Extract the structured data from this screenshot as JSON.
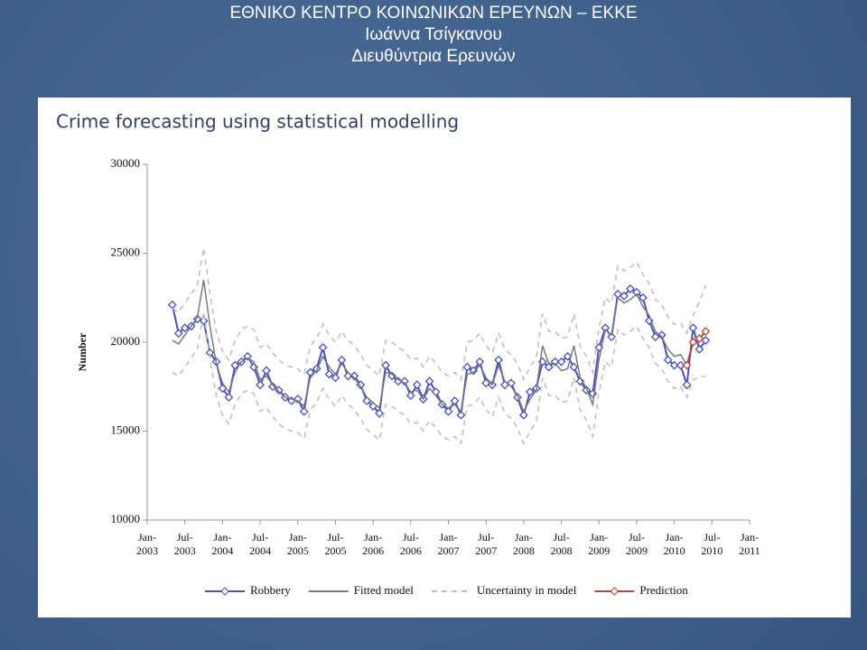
{
  "header": {
    "lines": [
      "ΕΘΝΙΚΟ ΚΕΝΤΡΟ ΚΟΙΝΩΝΙΚΩΝ ΕΡΕΥΝΩΝ – ΕΚΚΕ",
      "Ιωάννα Τσίγκανου",
      "Διευθύντρια Ερευνών"
    ]
  },
  "chart_data": {
    "type": "line",
    "title": "Crime forecasting using statistical modelling",
    "y_label": "Number",
    "x": [
      "2003-05",
      "2003-06",
      "2003-07",
      "2003-08",
      "2003-09",
      "2003-10",
      "2003-11",
      "2003-12",
      "2004-01",
      "2004-02",
      "2004-03",
      "2004-04",
      "2004-05",
      "2004-06",
      "2004-07",
      "2004-08",
      "2004-09",
      "2004-10",
      "2004-11",
      "2004-12",
      "2005-01",
      "2005-02",
      "2005-03",
      "2005-04",
      "2005-05",
      "2005-06",
      "2005-07",
      "2005-08",
      "2005-09",
      "2005-10",
      "2005-11",
      "2005-12",
      "2006-01",
      "2006-02",
      "2006-03",
      "2006-04",
      "2006-05",
      "2006-06",
      "2006-07",
      "2006-08",
      "2006-09",
      "2006-10",
      "2006-11",
      "2006-12",
      "2007-01",
      "2007-02",
      "2007-03",
      "2007-04",
      "2007-05",
      "2007-06",
      "2007-07",
      "2007-08",
      "2007-09",
      "2007-10",
      "2007-11",
      "2007-12",
      "2008-01",
      "2008-02",
      "2008-03",
      "2008-04",
      "2008-05",
      "2008-06",
      "2008-07",
      "2008-08",
      "2008-09",
      "2008-10",
      "2008-11",
      "2008-12",
      "2009-01",
      "2009-02",
      "2009-03",
      "2009-04",
      "2009-05",
      "2009-06",
      "2009-07",
      "2009-08",
      "2009-09",
      "2009-10",
      "2009-11",
      "2009-12",
      "2010-01",
      "2010-02",
      "2010-03",
      "2010-04",
      "2010-05",
      "2010-06"
    ],
    "series": [
      {
        "name": "Robbery",
        "color": "#4a52b8",
        "marker": "diamond",
        "values": [
          22100,
          20500,
          20800,
          20900,
          21300,
          21200,
          19400,
          18900,
          17400,
          16900,
          18700,
          18900,
          19200,
          18600,
          17600,
          18400,
          17500,
          17300,
          16900,
          16700,
          16800,
          16100,
          18300,
          18500,
          19700,
          18200,
          18000,
          19000,
          18100,
          18100,
          17600,
          16700,
          16400,
          16000,
          18700,
          18100,
          17800,
          17800,
          17000,
          17600,
          16800,
          17800,
          17200,
          16500,
          16100,
          16700,
          15900,
          18600,
          18400,
          18900,
          17700,
          17600,
          19000,
          17600,
          17700,
          16900,
          15900,
          17200,
          17400,
          18900,
          18600,
          18900,
          18900,
          19200,
          18600,
          17800,
          17300,
          17100,
          19700,
          20800,
          20300,
          22700,
          22600,
          23000,
          22800,
          22500,
          21200,
          20300,
          20400,
          19000,
          18700,
          18700,
          17600,
          20800,
          19600,
          20100
        ]
      },
      {
        "name": "Fitted model",
        "color": "#7a7a7a",
        "values": [
          20100,
          19900,
          20400,
          20900,
          21400,
          23500,
          20900,
          18800,
          17700,
          17200,
          18300,
          18900,
          19100,
          18900,
          17900,
          18100,
          17600,
          17200,
          16900,
          16800,
          16700,
          16400,
          18000,
          18400,
          19200,
          18600,
          18200,
          18800,
          18300,
          18000,
          17500,
          16900,
          16600,
          16300,
          18300,
          18200,
          17900,
          17700,
          17200,
          17300,
          16800,
          17400,
          17000,
          16500,
          16300,
          16500,
          16100,
          18200,
          18300,
          18700,
          18000,
          17600,
          18700,
          17800,
          17500,
          17000,
          16100,
          16800,
          17300,
          19800,
          18800,
          18800,
          18400,
          18500,
          19800,
          18000,
          17400,
          16500,
          19000,
          20700,
          20400,
          22500,
          22200,
          22400,
          22700,
          22000,
          21500,
          20600,
          20300,
          19600,
          19200,
          19300,
          18700,
          null,
          null,
          null
        ]
      },
      {
        "name": "Uncertainty in model",
        "color": "#bdbdbd",
        "dash": true,
        "values": [
          21900,
          21700,
          22200,
          22700,
          23200,
          25300,
          22700,
          20600,
          19500,
          19000,
          20100,
          20700,
          20900,
          20700,
          19700,
          19900,
          19400,
          19000,
          18700,
          18600,
          18500,
          18200,
          19800,
          20200,
          21000,
          20400,
          20000,
          20600,
          20100,
          19800,
          19300,
          18700,
          18400,
          18100,
          20100,
          20000,
          19700,
          19500,
          19000,
          19100,
          18600,
          19200,
          18800,
          18300,
          18100,
          18300,
          17900,
          20000,
          20100,
          20500,
          19800,
          19400,
          20500,
          19600,
          19300,
          18800,
          17900,
          18600,
          19100,
          21600,
          20600,
          20600,
          20200,
          20300,
          21600,
          19800,
          19200,
          18300,
          20800,
          22500,
          22200,
          24300,
          24000,
          24200,
          24500,
          23800,
          23300,
          22400,
          22100,
          21400,
          21000,
          21100,
          20500,
          21500,
          22300,
          23200
        ]
      },
      {
        "color": "#bdbdbd",
        "dash": true,
        "values": [
          18300,
          18100,
          18600,
          19100,
          19600,
          21700,
          19100,
          17000,
          15900,
          15400,
          16500,
          17100,
          17300,
          17100,
          16100,
          16300,
          15800,
          15400,
          15100,
          15000,
          14900,
          14600,
          16200,
          16600,
          17400,
          16800,
          16400,
          17000,
          16500,
          16200,
          15700,
          15100,
          14800,
          14500,
          16500,
          16400,
          16100,
          15900,
          15400,
          15500,
          15000,
          15600,
          15200,
          14700,
          14500,
          14700,
          14300,
          16400,
          16500,
          16900,
          16200,
          15800,
          16900,
          16000,
          15700,
          15200,
          14300,
          15000,
          15500,
          18000,
          17000,
          17000,
          16600,
          16700,
          18000,
          16200,
          15600,
          14700,
          17200,
          18900,
          18600,
          20700,
          20400,
          20600,
          20900,
          20200,
          19700,
          18800,
          18500,
          17800,
          17400,
          17500,
          16900,
          17900,
          18000,
          18100
        ]
      },
      {
        "name": "Prediction",
        "color": "#b5473f",
        "marker": "diamond",
        "x": [
          "2010-03",
          "2010-04",
          "2010-05",
          "2010-06"
        ],
        "values": [
          18700,
          20000,
          20200,
          20600
        ]
      }
    ],
    "xlim": [
      "2003-01",
      "2011-01"
    ],
    "xticks": [
      {
        "value": "2003-01",
        "label": "Jan-\n2003"
      },
      {
        "value": "2003-07",
        "label": "Jul-\n2003"
      },
      {
        "value": "2004-01",
        "label": "Jan-\n2004"
      },
      {
        "value": "2004-07",
        "label": "Jul-\n2004"
      },
      {
        "value": "2005-01",
        "label": "Jan-\n2005"
      },
      {
        "value": "2005-07",
        "label": "Jul-\n2005"
      },
      {
        "value": "2006-01",
        "label": "Jan-\n2006"
      },
      {
        "value": "2006-07",
        "label": "Jul-\n2006"
      },
      {
        "value": "2007-01",
        "label": "Jan-\n2007"
      },
      {
        "value": "2007-07",
        "label": "Jul-\n2007"
      },
      {
        "value": "2008-01",
        "label": "Jan-\n2008"
      },
      {
        "value": "2008-07",
        "label": "Jul-\n2008"
      },
      {
        "value": "2009-01",
        "label": "Jan-\n2009"
      },
      {
        "value": "2009-07",
        "label": "Jul-\n2009"
      },
      {
        "value": "2010-01",
        "label": "Jan-\n2010"
      },
      {
        "value": "2010-07",
        "label": "Jul-\n2010"
      },
      {
        "value": "2011-01",
        "label": "Jan-\n2011"
      }
    ],
    "ylim": [
      10000,
      30000
    ],
    "yticks": [
      10000,
      15000,
      20000,
      25000,
      30000
    ],
    "grid": false,
    "legend": "bottom"
  }
}
